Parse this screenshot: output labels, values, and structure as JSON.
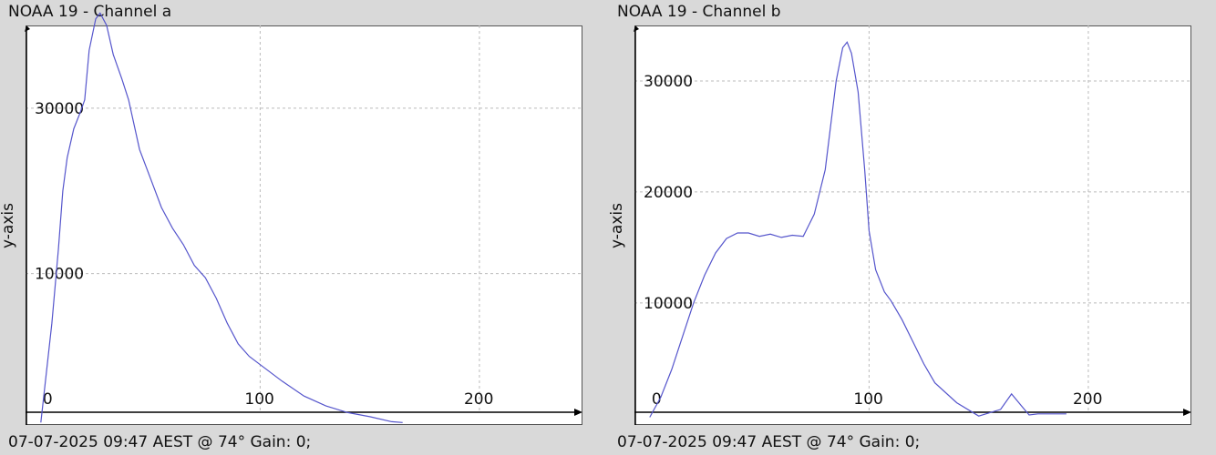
{
  "colors": {
    "background": "#d9d9d9",
    "plot_bg": "#ffffff",
    "line": "#5555cc",
    "grid": "#bbbbbb",
    "axis": "#000000"
  },
  "chart_data": [
    {
      "type": "line",
      "title": "NOAA 19 - Channel a",
      "footer": "07-07-2025 09:47 AEST @ 74° Gain: 0;",
      "ylabel": "y-axis",
      "xlabel": "",
      "xlim": [
        -7,
        247
      ],
      "ylim": [
        -8300,
        40000
      ],
      "xticks": [
        0,
        100,
        200
      ],
      "yticks": [
        10000,
        30000
      ],
      "grid": true,
      "series": [
        {
          "x": [
            0,
            5,
            8,
            10,
            12,
            15,
            18,
            20,
            22,
            25,
            27,
            30,
            33,
            37,
            40,
            45,
            50,
            55,
            60,
            65,
            70,
            75,
            80,
            85,
            90,
            95,
            100,
            110,
            120,
            130,
            140,
            150,
            160,
            165
          ],
          "y": [
            -8000,
            4000,
            13000,
            20000,
            24000,
            27500,
            29500,
            31000,
            37000,
            40800,
            41500,
            40000,
            36500,
            33500,
            31000,
            25000,
            21500,
            18000,
            15500,
            13500,
            11000,
            9500,
            7000,
            4000,
            1500,
            0,
            -1000,
            -3000,
            -4800,
            -6000,
            -6800,
            -7300,
            -7900,
            -8000
          ]
        }
      ]
    },
    {
      "type": "line",
      "title": "NOAA 19 - Channel b",
      "footer": "07-07-2025 09:47 AEST @ 74° Gain: 0;",
      "ylabel": "y-axis",
      "xlabel": "",
      "xlim": [
        -7,
        247
      ],
      "ylim": [
        -1000,
        35000
      ],
      "xticks": [
        0,
        100,
        200
      ],
      "yticks": [
        10000,
        20000,
        30000
      ],
      "grid": true,
      "series": [
        {
          "x": [
            0,
            5,
            10,
            15,
            20,
            25,
            30,
            35,
            40,
            45,
            50,
            55,
            60,
            65,
            70,
            75,
            80,
            85,
            88,
            90,
            92,
            95,
            98,
            100,
            103,
            107,
            110,
            115,
            120,
            125,
            130,
            140,
            150,
            160,
            165,
            170,
            173,
            177,
            180,
            185,
            190
          ],
          "y": [
            -300,
            1500,
            4000,
            7000,
            10000,
            12500,
            14500,
            15800,
            16300,
            16300,
            16000,
            16200,
            15900,
            16100,
            16000,
            18000,
            22000,
            30000,
            33000,
            33500,
            32500,
            29000,
            22000,
            16500,
            13000,
            11000,
            10200,
            8500,
            6500,
            4500,
            2800,
            1000,
            -200,
            400,
            1800,
            600,
            -100,
            0,
            0,
            0,
            0
          ]
        }
      ]
    }
  ]
}
